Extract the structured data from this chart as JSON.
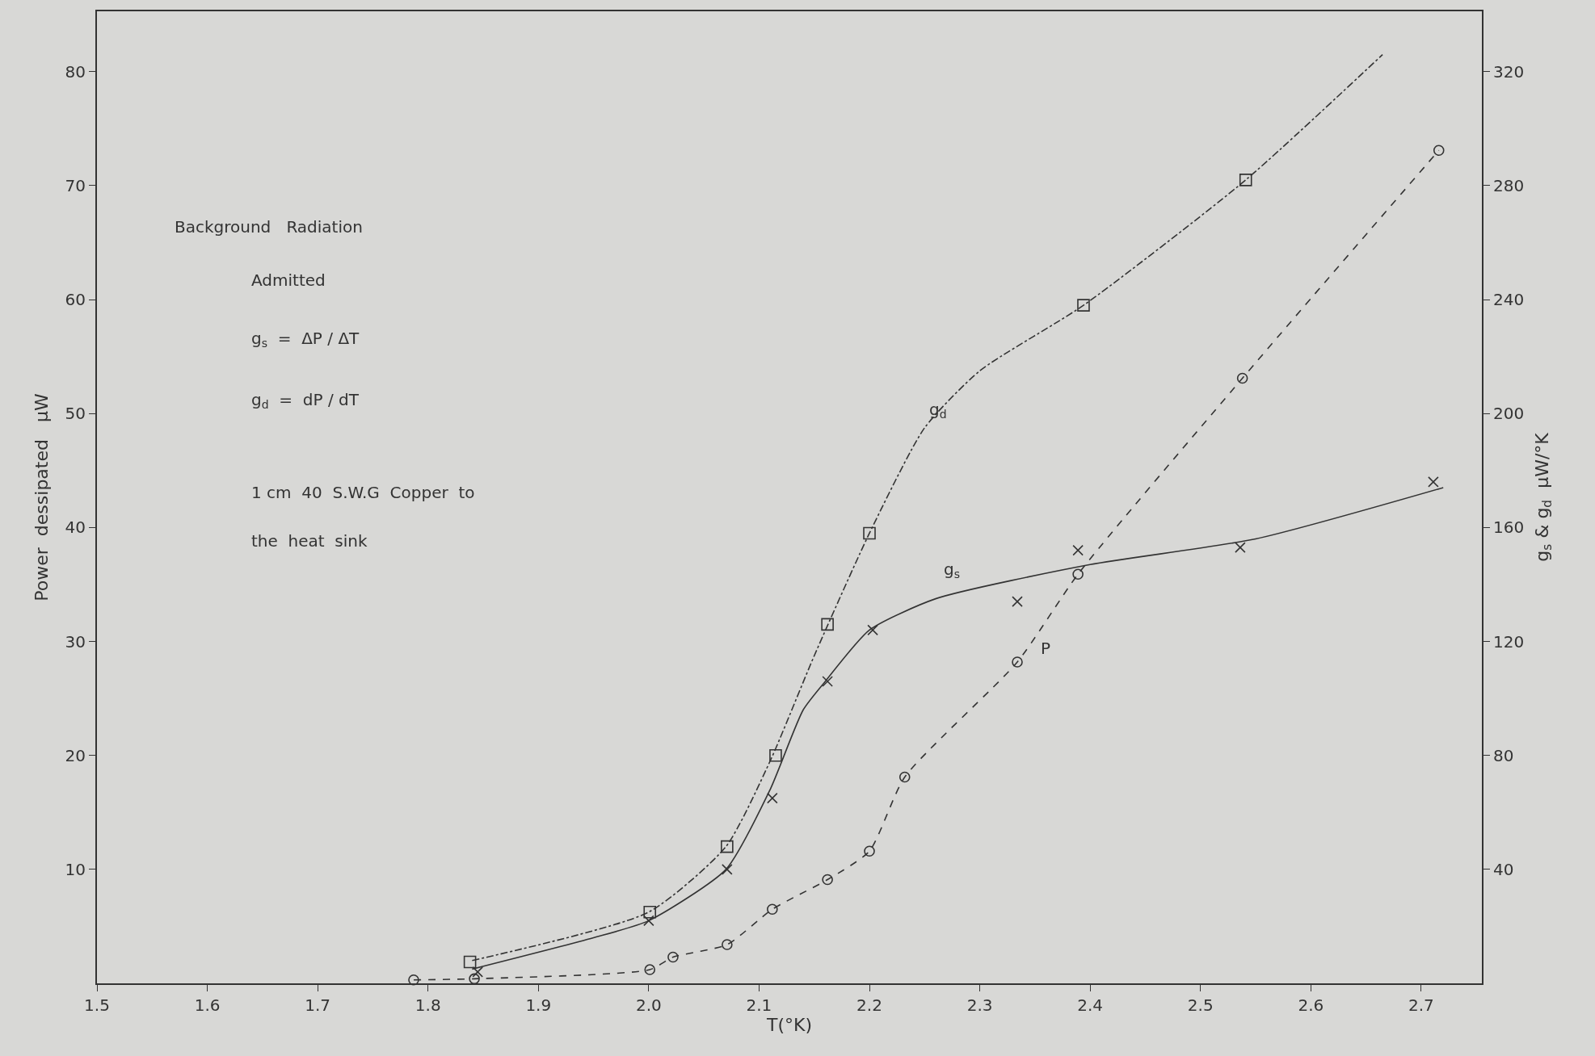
{
  "chart_data": {
    "type": "line",
    "xlabel": "T(°K)",
    "ylabel": "Power  dessipated   μW",
    "y2label": "g$_{s}$ & g$_{d}$  μW/°K",
    "xlim": [
      1.5,
      2.755
    ],
    "ylim": [
      0,
      85.3
    ],
    "y2lim": [
      0,
      341.2
    ],
    "xticks": [
      1.5,
      1.6,
      1.7,
      1.8,
      1.9,
      {
        "value": 2.0,
        "label": "2.0"
      },
      2.1,
      2.2,
      2.3,
      2.4,
      2.5,
      2.6,
      2.7
    ],
    "yticks": [
      10,
      20,
      30,
      40,
      50,
      60,
      70,
      80
    ],
    "y2ticks": [
      40,
      80,
      120,
      160,
      200,
      240,
      280,
      320
    ],
    "grid": false,
    "series": [
      {
        "color": "#333333",
        "marker": "circle",
        "line_style": "dashed",
        "x": [
          1.787,
          1.842,
          2.001,
          2.022,
          2.071,
          2.112,
          2.162,
          2.2,
          2.232,
          2.334,
          2.389,
          2.538,
          2.716
        ],
        "values": [
          0.3,
          0.4,
          1.2,
          2.3,
          3.4,
          6.5,
          9.1,
          11.6,
          18.1,
          28.2,
          35.9,
          53.1,
          73.1
        ]
      },
      {
        "type": "scatter",
        "color": "#333333",
        "marker": "cross",
        "axis": "y2",
        "x": [
          1.845,
          2.0,
          2.071,
          2.112,
          2.162,
          2.203,
          2.334,
          2.389,
          2.536,
          2.711
        ],
        "values": [
          4,
          22,
          40,
          65,
          106,
          124,
          134,
          152,
          153,
          176
        ]
      },
      {
        "color": "#333333",
        "marker": "none",
        "line_style": "solid",
        "axis": "y2",
        "x": [
          1.84,
          1.95,
          2.0,
          2.07,
          2.11,
          2.14,
          2.16,
          2.2,
          2.26,
          2.4,
          2.55,
          2.72
        ],
        "values": [
          5,
          16,
          22,
          40,
          68,
          96,
          106,
          124,
          135,
          147,
          156,
          174
        ]
      },
      {
        "type": "scatter",
        "color": "#333333",
        "marker": "square",
        "axis": "y2",
        "x": [
          1.838,
          2.001,
          2.071,
          2.115,
          2.162,
          2.2,
          2.394,
          2.541
        ],
        "values": [
          7.5,
          25,
          48,
          80,
          126,
          158,
          238,
          282
        ]
      },
      {
        "color": "#333333",
        "marker": "none",
        "line_style": "dashdot",
        "axis": "y2",
        "x": [
          1.84,
          2.0,
          2.07,
          2.11,
          2.15,
          2.2,
          2.25,
          2.3,
          2.394,
          2.541,
          2.665
        ],
        "values": [
          8,
          25,
          48,
          78,
          115,
          158,
          195,
          215,
          238,
          282,
          326
        ]
      }
    ],
    "annotations": [
      "Background   Radiation",
      "Admitted",
      "g$_{s}$  =  ΔP / ΔT",
      "g$_{d}$  =  dP / dT",
      "1 cm  40  S.W.G  Copper  to",
      "the  heat  sink",
      "g$_{d}$",
      "g$_{s}$",
      "P"
    ]
  }
}
